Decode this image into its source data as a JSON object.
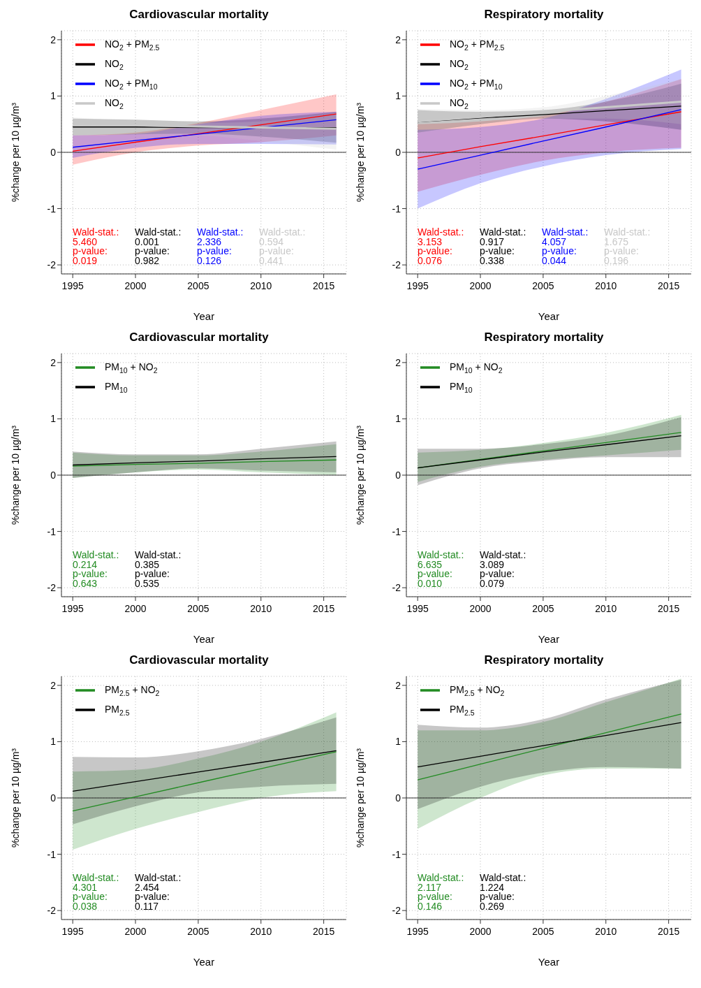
{
  "chart_data": [
    {
      "type": "line",
      "title": "Cardiovascular mortality",
      "xlabel": "Year",
      "ylabel": "%change per 10 µg/m³",
      "x": [
        1995,
        2000,
        2005,
        2010,
        2016
      ],
      "xlim": [
        1994.1,
        2016.8
      ],
      "xticks": [
        1995,
        2000,
        2005,
        2010,
        2015
      ],
      "ylim": [
        -2.16,
        2.16
      ],
      "yticks": [
        -2,
        -1,
        0,
        1,
        2
      ],
      "grid": true,
      "legend": "top left",
      "ref_lines": [
        {
          "axis": "y",
          "value": 0
        }
      ],
      "series": [
        {
          "name": "NO$_{2}$ + PM$_{2.5}$",
          "color": "#ff0000",
          "values": [
            0.02,
            0.18,
            0.33,
            0.49,
            0.68
          ],
          "lower": [
            -0.22,
            0.0,
            0.12,
            0.18,
            0.3
          ],
          "upper": [
            0.3,
            0.35,
            0.52,
            0.75,
            1.03
          ]
        },
        {
          "name": "NO$_{2}$",
          "color": "#000000",
          "values": [
            0.45,
            0.45,
            0.44,
            0.44,
            0.44
          ],
          "lower": [
            0.3,
            0.32,
            0.33,
            0.28,
            0.17
          ],
          "upper": [
            0.6,
            0.58,
            0.55,
            0.6,
            0.72
          ]
        },
        {
          "name": "NO$_{2}$ + PM$_{10}$",
          "color": "#0000ff",
          "values": [
            0.09,
            0.21,
            0.32,
            0.44,
            0.58
          ],
          "lower": [
            -0.1,
            0.08,
            0.15,
            0.15,
            0.14
          ],
          "upper": [
            0.3,
            0.33,
            0.5,
            0.65,
            0.72
          ]
        },
        {
          "name": "NO$_{2}$",
          "color": "#c8c8c8",
          "values": [
            0.5,
            0.48,
            0.46,
            0.44,
            0.42
          ],
          "lower": [
            0.3,
            0.32,
            0.3,
            0.2,
            0.05
          ],
          "upper": [
            0.62,
            0.55,
            0.52,
            0.55,
            0.7
          ]
        }
      ],
      "annotations": [
        "Wald-stat.:\n5.460\np-value:\n0.019",
        "Wald-stat.:\n0.001\np-value:\n0.982",
        "Wald-stat.:\n2.336\np-value:\n0.126",
        "Wald-stat.:\n0.594\np-value:\n0.441"
      ]
    },
    {
      "type": "line",
      "title": "Respiratory mortality",
      "xlabel": "Year",
      "ylabel": "%change per 10 µg/m³",
      "x": [
        1995,
        2000,
        2005,
        2010,
        2016
      ],
      "xlim": [
        1994.1,
        2016.8
      ],
      "xticks": [
        1995,
        2000,
        2005,
        2010,
        2015
      ],
      "ylim": [
        -2.16,
        2.16
      ],
      "yticks": [
        -2,
        -1,
        0,
        1,
        2
      ],
      "grid": true,
      "legend": "top left",
      "ref_lines": [
        {
          "axis": "y",
          "value": 0
        }
      ],
      "series": [
        {
          "name": "NO$_{2}$ + PM$_{2.5}$",
          "color": "#ff0000",
          "values": [
            -0.1,
            0.1,
            0.29,
            0.49,
            0.72
          ],
          "lower": [
            -0.7,
            -0.4,
            -0.15,
            0.0,
            0.08
          ],
          "upper": [
            0.5,
            0.55,
            0.65,
            0.9,
            1.3
          ]
        },
        {
          "name": "NO$_{2}$",
          "color": "#000000",
          "values": [
            0.54,
            0.61,
            0.67,
            0.74,
            0.82
          ],
          "lower": [
            0.35,
            0.5,
            0.6,
            0.55,
            0.4
          ],
          "upper": [
            0.75,
            0.72,
            0.75,
            0.9,
            1.22
          ]
        },
        {
          "name": "NO$_{2}$ + PM$_{10}$",
          "color": "#0000ff",
          "values": [
            -0.3,
            -0.05,
            0.2,
            0.45,
            0.76
          ],
          "lower": [
            -1.0,
            -0.55,
            -0.25,
            -0.05,
            0.06
          ],
          "upper": [
            0.4,
            0.45,
            0.6,
            0.95,
            1.47
          ]
        },
        {
          "name": "NO$_{2}$",
          "color": "#c8c8c8",
          "values": [
            0.55,
            0.63,
            0.72,
            0.8,
            0.9
          ],
          "lower": [
            0.35,
            0.5,
            0.6,
            0.6,
            0.5
          ],
          "upper": [
            0.77,
            0.75,
            0.8,
            1.0,
            1.3
          ]
        }
      ],
      "annotations": [
        "Wald-stat.:\n3.153\np-value:\n0.076",
        "Wald-stat.:\n0.917\np-value:\n0.338",
        "Wald-stat.:\n4.057\np-value:\n0.044",
        "Wald-stat.:\n1.675\np-value:\n0.196"
      ]
    },
    {
      "type": "line",
      "title": "Cardiovascular mortality",
      "xlabel": "Year",
      "ylabel": "%change per 10 µg/m³",
      "x": [
        1995,
        2000,
        2005,
        2010,
        2016
      ],
      "xlim": [
        1994.1,
        2016.8
      ],
      "xticks": [
        1995,
        2000,
        2005,
        2010,
        2015
      ],
      "ylim": [
        -2.16,
        2.16
      ],
      "yticks": [
        -2,
        -1,
        0,
        1,
        2
      ],
      "grid": true,
      "legend": "top left",
      "ref_lines": [
        {
          "axis": "y",
          "value": 0
        }
      ],
      "series": [
        {
          "name": "PM$_{10}$ + NO$_{2}$",
          "color": "#228b22",
          "values": [
            0.16,
            0.19,
            0.21,
            0.24,
            0.27
          ],
          "lower": [
            -0.05,
            0.05,
            0.1,
            0.05,
            0.0
          ],
          "upper": [
            0.4,
            0.35,
            0.35,
            0.42,
            0.55
          ]
        },
        {
          "name": "PM$_{10}$",
          "color": "#000000",
          "values": [
            0.18,
            0.22,
            0.25,
            0.29,
            0.33
          ],
          "lower": [
            -0.05,
            0.05,
            0.12,
            0.08,
            0.05
          ],
          "upper": [
            0.42,
            0.37,
            0.37,
            0.47,
            0.6
          ]
        }
      ],
      "annotations": [
        "Wald-stat.:\n0.214\np-value:\n0.643",
        "Wald-stat.:\n0.385\np-value:\n0.535"
      ]
    },
    {
      "type": "line",
      "title": "Respiratory mortality",
      "xlabel": "Year",
      "ylabel": "%change per 10 µg/m³",
      "x": [
        1995,
        2000,
        2005,
        2010,
        2016
      ],
      "xlim": [
        1994.1,
        2016.8
      ],
      "xticks": [
        1995,
        2000,
        2005,
        2010,
        2015
      ],
      "ylim": [
        -2.16,
        2.16
      ],
      "yticks": [
        -2,
        -1,
        0,
        1,
        2
      ],
      "grid": true,
      "legend": "top left",
      "ref_lines": [
        {
          "axis": "y",
          "value": 0
        }
      ],
      "series": [
        {
          "name": "PM$_{10}$ + NO$_{2}$",
          "color": "#228b22",
          "values": [
            0.13,
            0.28,
            0.43,
            0.58,
            0.76
          ],
          "lower": [
            -0.12,
            0.15,
            0.27,
            0.35,
            0.45
          ],
          "upper": [
            0.4,
            0.45,
            0.57,
            0.75,
            1.07
          ]
        },
        {
          "name": "PM$_{10}$",
          "color": "#000000",
          "values": [
            0.13,
            0.27,
            0.41,
            0.54,
            0.7
          ],
          "lower": [
            -0.18,
            0.12,
            0.25,
            0.32,
            0.32
          ],
          "upper": [
            0.47,
            0.47,
            0.55,
            0.7,
            1.03
          ]
        }
      ],
      "annotations": [
        "Wald-stat.:\n6.635\np-value:\n0.010",
        "Wald-stat.:\n3.089\np-value:\n0.079"
      ]
    },
    {
      "type": "line",
      "title": "Cardiovascular mortality",
      "xlabel": "Year",
      "ylabel": "%change per 10 µg/m³",
      "x": [
        1995,
        2000,
        2005,
        2010,
        2016
      ],
      "xlim": [
        1994.1,
        2016.8
      ],
      "xticks": [
        1995,
        2000,
        2005,
        2010,
        2015
      ],
      "ylim": [
        -2.16,
        2.16
      ],
      "yticks": [
        -2,
        -1,
        0,
        1,
        2
      ],
      "grid": true,
      "legend": "top left",
      "ref_lines": [
        {
          "axis": "y",
          "value": 0
        }
      ],
      "series": [
        {
          "name": "PM$_{2.5}$ + NO$_{2}$",
          "color": "#228b22",
          "values": [
            -0.23,
            0.02,
            0.27,
            0.52,
            0.82
          ],
          "lower": [
            -0.92,
            -0.55,
            -0.25,
            0.0,
            0.12
          ],
          "upper": [
            0.47,
            0.5,
            0.7,
            1.0,
            1.52
          ]
        },
        {
          "name": "PM$_{2.5}$",
          "color": "#000000",
          "values": [
            0.12,
            0.29,
            0.46,
            0.63,
            0.84
          ],
          "lower": [
            -0.47,
            -0.15,
            0.1,
            0.2,
            0.25
          ],
          "upper": [
            0.73,
            0.72,
            0.83,
            1.05,
            1.43
          ]
        }
      ],
      "annotations": [
        "Wald-stat.:\n4.301\np-value:\n0.038",
        "Wald-stat.:\n2.454\np-value:\n0.117"
      ]
    },
    {
      "type": "line",
      "title": "Respiratory mortality",
      "xlabel": "Year",
      "ylabel": "%change per 10 µg/m³",
      "x": [
        1995,
        2000,
        2005,
        2010,
        2016
      ],
      "xlim": [
        1994.1,
        2016.8
      ],
      "xticks": [
        1995,
        2000,
        2005,
        2010,
        2015
      ],
      "ylim": [
        -2.16,
        2.16
      ],
      "yticks": [
        -2,
        -1,
        0,
        1,
        2
      ],
      "grid": true,
      "legend": "top left",
      "ref_lines": [
        {
          "axis": "y",
          "value": 0
        }
      ],
      "series": [
        {
          "name": "PM$_{2.5}$ + NO$_{2}$",
          "color": "#228b22",
          "values": [
            0.32,
            0.6,
            0.88,
            1.16,
            1.49
          ],
          "lower": [
            -0.55,
            0.0,
            0.4,
            0.52,
            0.52
          ],
          "upper": [
            1.2,
            1.2,
            1.35,
            1.7,
            2.12
          ]
        },
        {
          "name": "PM$_{2.5}$",
          "color": "#000000",
          "values": [
            0.55,
            0.74,
            0.93,
            1.11,
            1.34
          ],
          "lower": [
            -0.2,
            0.2,
            0.45,
            0.55,
            0.52
          ],
          "upper": [
            1.3,
            1.25,
            1.4,
            1.75,
            2.1
          ]
        }
      ],
      "annotations": [
        "Wald-stat.:\n2.117\np-value:\n0.146",
        "Wald-stat.:\n1.224\np-value:\n0.269"
      ]
    }
  ]
}
